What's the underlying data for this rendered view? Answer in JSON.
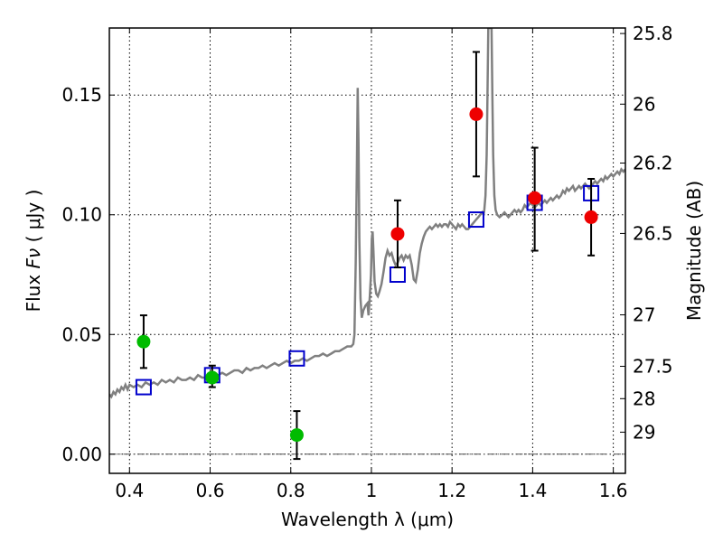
{
  "chart_data": {
    "type": "scatter",
    "xlabel": "Wavelength  λ (μm)",
    "ylabel_left": "Flux  Fν  ( μJy )",
    "ylabel_right": "Magnitude (AB)",
    "xlim": [
      0.35,
      1.63
    ],
    "ylim": [
      -0.008,
      0.178
    ],
    "x_ticks": [
      0.4,
      0.6,
      0.8,
      1.0,
      1.2,
      1.4,
      1.6
    ],
    "x_tick_labels": [
      "0.4",
      "0.6",
      "0.8",
      "1",
      "1.2",
      "1.4",
      "1.6"
    ],
    "y_ticks": [
      0.0,
      0.05,
      0.1,
      0.15
    ],
    "y_tick_labels": [
      "0.00",
      "0.05",
      "0.10",
      "0.15"
    ],
    "right_ticks": [
      {
        "label": "25.8",
        "flux": 0.1757
      },
      {
        "label": "26",
        "flux": 0.1462
      },
      {
        "label": "26.2",
        "flux": 0.1216
      },
      {
        "label": "26.5",
        "flux": 0.0922
      },
      {
        "label": "27",
        "flux": 0.0582
      },
      {
        "label": "27.5",
        "flux": 0.0367
      },
      {
        "label": "28",
        "flux": 0.0232
      },
      {
        "label": "29",
        "flux": 0.0092
      }
    ],
    "grid": true,
    "zero_line": true,
    "colors": {
      "spectrum": "#808080",
      "model_points": "#0000cc",
      "green_points": "#00bb00",
      "red_points": "#ee0000",
      "errorbars": "#000000"
    },
    "series": [
      {
        "kind": "line",
        "role": "spectrum",
        "points": [
          [
            0.35,
            0.025
          ],
          [
            0.355,
            0.024
          ],
          [
            0.36,
            0.026
          ],
          [
            0.365,
            0.025
          ],
          [
            0.37,
            0.027
          ],
          [
            0.375,
            0.026
          ],
          [
            0.38,
            0.028
          ],
          [
            0.385,
            0.027
          ],
          [
            0.39,
            0.029
          ],
          [
            0.395,
            0.027
          ],
          [
            0.4,
            0.029
          ],
          [
            0.41,
            0.028
          ],
          [
            0.42,
            0.029
          ],
          [
            0.43,
            0.028
          ],
          [
            0.44,
            0.03
          ],
          [
            0.45,
            0.029
          ],
          [
            0.46,
            0.03
          ],
          [
            0.47,
            0.029
          ],
          [
            0.48,
            0.031
          ],
          [
            0.49,
            0.03
          ],
          [
            0.5,
            0.031
          ],
          [
            0.51,
            0.03
          ],
          [
            0.52,
            0.032
          ],
          [
            0.53,
            0.031
          ],
          [
            0.54,
            0.031
          ],
          [
            0.55,
            0.032
          ],
          [
            0.56,
            0.031
          ],
          [
            0.57,
            0.033
          ],
          [
            0.58,
            0.032
          ],
          [
            0.59,
            0.032
          ],
          [
            0.6,
            0.031
          ],
          [
            0.61,
            0.033
          ],
          [
            0.62,
            0.033
          ],
          [
            0.63,
            0.034
          ],
          [
            0.64,
            0.033
          ],
          [
            0.65,
            0.034
          ],
          [
            0.66,
            0.035
          ],
          [
            0.67,
            0.035
          ],
          [
            0.68,
            0.034
          ],
          [
            0.69,
            0.036
          ],
          [
            0.7,
            0.035
          ],
          [
            0.71,
            0.036
          ],
          [
            0.72,
            0.036
          ],
          [
            0.73,
            0.037
          ],
          [
            0.74,
            0.036
          ],
          [
            0.75,
            0.037
          ],
          [
            0.76,
            0.038
          ],
          [
            0.77,
            0.037
          ],
          [
            0.78,
            0.038
          ],
          [
            0.79,
            0.039
          ],
          [
            0.8,
            0.038
          ],
          [
            0.81,
            0.039
          ],
          [
            0.82,
            0.039
          ],
          [
            0.83,
            0.04
          ],
          [
            0.84,
            0.039
          ],
          [
            0.85,
            0.04
          ],
          [
            0.86,
            0.041
          ],
          [
            0.87,
            0.041
          ],
          [
            0.88,
            0.042
          ],
          [
            0.89,
            0.041
          ],
          [
            0.9,
            0.042
          ],
          [
            0.91,
            0.043
          ],
          [
            0.92,
            0.043
          ],
          [
            0.93,
            0.044
          ],
          [
            0.94,
            0.045
          ],
          [
            0.95,
            0.045
          ],
          [
            0.955,
            0.046
          ],
          [
            0.958,
            0.05
          ],
          [
            0.961,
            0.08
          ],
          [
            0.964,
            0.12
          ],
          [
            0.966,
            0.153
          ],
          [
            0.968,
            0.13
          ],
          [
            0.97,
            0.09
          ],
          [
            0.973,
            0.065
          ],
          [
            0.976,
            0.057
          ],
          [
            0.98,
            0.06
          ],
          [
            0.985,
            0.062
          ],
          [
            0.99,
            0.063
          ],
          [
            0.993,
            0.058
          ],
          [
            0.996,
            0.066
          ],
          [
            0.999,
            0.075
          ],
          [
            1.001,
            0.09
          ],
          [
            1.003,
            0.093
          ],
          [
            1.005,
            0.085
          ],
          [
            1.008,
            0.072
          ],
          [
            1.012,
            0.067
          ],
          [
            1.016,
            0.066
          ],
          [
            1.02,
            0.068
          ],
          [
            1.025,
            0.071
          ],
          [
            1.03,
            0.076
          ],
          [
            1.035,
            0.082
          ],
          [
            1.04,
            0.085
          ],
          [
            1.045,
            0.083
          ],
          [
            1.05,
            0.084
          ],
          [
            1.055,
            0.081
          ],
          [
            1.06,
            0.079
          ],
          [
            1.065,
            0.08
          ],
          [
            1.07,
            0.082
          ],
          [
            1.075,
            0.083
          ],
          [
            1.08,
            0.081
          ],
          [
            1.085,
            0.083
          ],
          [
            1.09,
            0.082
          ],
          [
            1.095,
            0.083
          ],
          [
            1.1,
            0.079
          ],
          [
            1.105,
            0.073
          ],
          [
            1.11,
            0.072
          ],
          [
            1.115,
            0.077
          ],
          [
            1.12,
            0.084
          ],
          [
            1.125,
            0.088
          ],
          [
            1.13,
            0.091
          ],
          [
            1.135,
            0.093
          ],
          [
            1.14,
            0.094
          ],
          [
            1.145,
            0.095
          ],
          [
            1.15,
            0.094
          ],
          [
            1.155,
            0.095
          ],
          [
            1.16,
            0.096
          ],
          [
            1.165,
            0.095
          ],
          [
            1.17,
            0.096
          ],
          [
            1.175,
            0.095
          ],
          [
            1.18,
            0.096
          ],
          [
            1.185,
            0.096
          ],
          [
            1.19,
            0.095
          ],
          [
            1.195,
            0.097
          ],
          [
            1.2,
            0.096
          ],
          [
            1.205,
            0.095
          ],
          [
            1.21,
            0.094
          ],
          [
            1.215,
            0.096
          ],
          [
            1.22,
            0.095
          ],
          [
            1.225,
            0.096
          ],
          [
            1.23,
            0.095
          ],
          [
            1.235,
            0.094
          ],
          [
            1.24,
            0.094
          ],
          [
            1.245,
            0.095
          ],
          [
            1.25,
            0.096
          ],
          [
            1.255,
            0.097
          ],
          [
            1.26,
            0.098
          ],
          [
            1.265,
            0.099
          ],
          [
            1.27,
            0.1
          ],
          [
            1.275,
            0.101
          ],
          [
            1.278,
            0.1
          ],
          [
            1.28,
            0.102
          ],
          [
            1.283,
            0.108
          ],
          [
            1.286,
            0.125
          ],
          [
            1.288,
            0.15
          ],
          [
            1.29,
            0.178
          ],
          [
            1.298,
            0.178
          ],
          [
            1.3,
            0.15
          ],
          [
            1.302,
            0.125
          ],
          [
            1.305,
            0.108
          ],
          [
            1.308,
            0.102
          ],
          [
            1.312,
            0.1
          ],
          [
            1.318,
            0.099
          ],
          [
            1.325,
            0.1
          ],
          [
            1.33,
            0.101
          ],
          [
            1.335,
            0.1
          ],
          [
            1.34,
            0.099
          ],
          [
            1.345,
            0.1
          ],
          [
            1.35,
            0.101
          ],
          [
            1.355,
            0.102
          ],
          [
            1.36,
            0.101
          ],
          [
            1.365,
            0.102
          ],
          [
            1.37,
            0.101
          ],
          [
            1.375,
            0.102
          ],
          [
            1.38,
            0.104
          ],
          [
            1.385,
            0.103
          ],
          [
            1.39,
            0.104
          ],
          [
            1.395,
            0.105
          ],
          [
            1.4,
            0.104
          ],
          [
            1.405,
            0.103
          ],
          [
            1.41,
            0.104
          ],
          [
            1.415,
            0.105
          ],
          [
            1.42,
            0.104
          ],
          [
            1.425,
            0.105
          ],
          [
            1.43,
            0.106
          ],
          [
            1.435,
            0.105
          ],
          [
            1.44,
            0.106
          ],
          [
            1.445,
            0.107
          ],
          [
            1.45,
            0.106
          ],
          [
            1.455,
            0.107
          ],
          [
            1.46,
            0.108
          ],
          [
            1.465,
            0.107
          ],
          [
            1.47,
            0.108
          ],
          [
            1.475,
            0.11
          ],
          [
            1.48,
            0.109
          ],
          [
            1.485,
            0.111
          ],
          [
            1.49,
            0.11
          ],
          [
            1.495,
            0.111
          ],
          [
            1.5,
            0.112
          ],
          [
            1.505,
            0.11
          ],
          [
            1.51,
            0.111
          ],
          [
            1.515,
            0.112
          ],
          [
            1.52,
            0.111
          ],
          [
            1.525,
            0.112
          ],
          [
            1.53,
            0.113
          ],
          [
            1.535,
            0.112
          ],
          [
            1.54,
            0.111
          ],
          [
            1.545,
            0.112
          ],
          [
            1.55,
            0.113
          ],
          [
            1.555,
            0.114
          ],
          [
            1.56,
            0.113
          ],
          [
            1.565,
            0.114
          ],
          [
            1.57,
            0.115
          ],
          [
            1.575,
            0.114
          ],
          [
            1.58,
            0.116
          ],
          [
            1.585,
            0.115
          ],
          [
            1.59,
            0.116
          ],
          [
            1.595,
            0.117
          ],
          [
            1.6,
            0.116
          ],
          [
            1.605,
            0.117
          ],
          [
            1.61,
            0.118
          ],
          [
            1.615,
            0.117
          ],
          [
            1.62,
            0.119
          ],
          [
            1.625,
            0.118
          ],
          [
            1.63,
            0.119
          ]
        ]
      },
      {
        "kind": "squares",
        "role": "model_points",
        "points": [
          {
            "x": 0.435,
            "y": 0.028
          },
          {
            "x": 0.605,
            "y": 0.033
          },
          {
            "x": 0.815,
            "y": 0.04
          },
          {
            "x": 1.065,
            "y": 0.075
          },
          {
            "x": 1.26,
            "y": 0.098
          },
          {
            "x": 1.405,
            "y": 0.105
          },
          {
            "x": 1.545,
            "y": 0.109
          }
        ]
      },
      {
        "kind": "errorbar",
        "role": "green_points",
        "points": [
          {
            "x": 0.435,
            "y": 0.047,
            "lo": 0.036,
            "hi": 0.058
          },
          {
            "x": 0.605,
            "y": 0.032,
            "lo": 0.028,
            "hi": 0.037
          },
          {
            "x": 0.815,
            "y": 0.008,
            "lo": -0.002,
            "hi": 0.018
          }
        ]
      },
      {
        "kind": "errorbar",
        "role": "red_points",
        "points": [
          {
            "x": 1.065,
            "y": 0.092,
            "lo": 0.078,
            "hi": 0.106
          },
          {
            "x": 1.26,
            "y": 0.142,
            "lo": 0.116,
            "hi": 0.168
          },
          {
            "x": 1.405,
            "y": 0.107,
            "lo": 0.085,
            "hi": 0.128
          },
          {
            "x": 1.545,
            "y": 0.099,
            "lo": 0.083,
            "hi": 0.115
          }
        ]
      }
    ]
  }
}
